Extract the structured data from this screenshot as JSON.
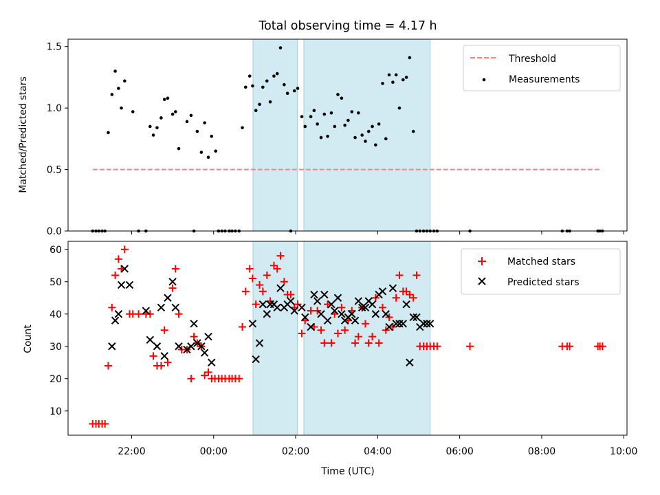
{
  "figure": {
    "title": "Total observing time = 4.17 h"
  },
  "chart_data": [
    {
      "type": "scatter",
      "xlabel": "",
      "ylabel": "Matched/Predicted stars",
      "ylim": [
        0,
        1.56
      ],
      "yticks": [
        "0.0",
        "0.5",
        "1.0",
        "1.5"
      ],
      "ytick_values": [
        0,
        0.5,
        1.0,
        1.5
      ],
      "legend_position": "top-right",
      "shaded_intervals_hours": [
        [
          0.96,
          2.04
        ],
        [
          2.2,
          5.28
        ]
      ],
      "shade_color": "#add8e6",
      "threshold": {
        "name": "Threshold",
        "value": 0.5,
        "x_range_hours": [
          -2.95,
          9.45
        ],
        "color": "#ff7f7f",
        "style": "dashed"
      },
      "series": [
        {
          "name": "Measurements",
          "color": "#000000",
          "marker": "dot",
          "x_hours": [
            -2.95,
            -2.87,
            -2.8,
            -2.72,
            -2.65,
            -2.57,
            -2.48,
            -2.4,
            -2.32,
            -2.25,
            -2.17,
            -1.97,
            -1.83,
            -1.65,
            -1.55,
            -1.47,
            -1.38,
            -1.28,
            -1.2,
            -1.12,
            -1.0,
            -0.93,
            -0.85,
            -0.65,
            -0.55,
            -0.48,
            -0.4,
            -0.3,
            -0.22,
            -0.13,
            -0.05,
            0.05,
            0.12,
            0.2,
            0.28,
            0.38,
            0.45,
            0.53,
            0.62,
            0.7,
            0.78,
            0.88,
            0.95,
            1.03,
            1.12,
            1.2,
            1.3,
            1.38,
            1.47,
            1.55,
            1.63,
            1.72,
            1.8,
            1.88,
            1.97,
            2.05,
            2.15,
            2.23,
            2.37,
            2.45,
            2.53,
            2.62,
            2.7,
            2.78,
            2.87,
            2.95,
            3.03,
            3.12,
            3.2,
            3.28,
            3.37,
            3.45,
            3.53,
            3.62,
            3.7,
            3.78,
            3.87,
            3.95,
            4.03,
            4.12,
            4.2,
            4.28,
            4.37,
            4.45,
            4.53,
            4.62,
            4.7,
            4.78,
            4.87,
            4.95,
            5.03,
            5.12,
            5.2,
            5.28,
            5.37,
            5.45,
            6.25,
            8.5,
            8.62,
            8.68,
            9.37,
            9.42,
            9.48
          ],
          "y": [
            0,
            0,
            0,
            0,
            0,
            0.8,
            1.11,
            1.3,
            1.16,
            1.0,
            1.22,
            0.97,
            0,
            0,
            0.85,
            0.78,
            0.84,
            0.92,
            1.07,
            1.08,
            0.95,
            0.97,
            0.67,
            0.89,
            0.94,
            0,
            0.81,
            0.64,
            0.88,
            0.6,
            0.77,
            0.65,
            0,
            0,
            0,
            0,
            0,
            0,
            0,
            0.84,
            1.17,
            1.26,
            1.18,
            0.98,
            1.03,
            1.17,
            1.22,
            1.05,
            1.26,
            1.28,
            1.49,
            1.19,
            1.12,
            0,
            1.14,
            1.16,
            0.93,
            0.85,
            0.93,
            0.98,
            0.87,
            0.76,
            0.95,
            0.77,
            0.96,
            0.85,
            1.11,
            1.08,
            0.86,
            0.9,
            0.97,
            0.76,
            0.96,
            0.78,
            0.73,
            0.81,
            0.85,
            0.7,
            0.87,
            1.2,
            0.75,
            1.27,
            1.21,
            1.27,
            1.0,
            1.23,
            1.25,
            1.41,
            0.81,
            0,
            0,
            0,
            0,
            0,
            0,
            0,
            0,
            0,
            0,
            0,
            0,
            0,
            0
          ]
        }
      ]
    },
    {
      "type": "scatter",
      "xlabel": "Time (UTC)",
      "ylabel": "Count",
      "ylim": [
        2.5,
        62.5
      ],
      "yticks": [
        "10",
        "20",
        "30",
        "40",
        "50",
        "60"
      ],
      "ytick_values": [
        10,
        20,
        30,
        40,
        50,
        60
      ],
      "xlim_hours": [
        -3.55,
        10.08
      ],
      "xticks": [
        "22:00",
        "00:00",
        "02:00",
        "04:00",
        "06:00",
        "08:00",
        "10:00"
      ],
      "xtick_hours": [
        -2,
        0,
        2,
        4,
        6,
        8,
        10
      ],
      "legend_position": "top-right",
      "series": [
        {
          "name": "Matched stars",
          "color": "#ff0000",
          "marker": "plus",
          "x_hours": [
            -2.95,
            -2.87,
            -2.8,
            -2.72,
            -2.65,
            -2.57,
            -2.48,
            -2.4,
            -2.32,
            -2.25,
            -2.17,
            -2.05,
            -1.97,
            -1.83,
            -1.65,
            -1.55,
            -1.47,
            -1.38,
            -1.28,
            -1.2,
            -1.12,
            -1.0,
            -0.93,
            -0.85,
            -0.78,
            -0.65,
            -0.55,
            -0.48,
            -0.4,
            -0.3,
            -0.22,
            -0.13,
            -0.05,
            0.03,
            0.12,
            0.2,
            0.28,
            0.38,
            0.45,
            0.53,
            0.62,
            0.7,
            0.78,
            0.88,
            0.95,
            1.03,
            1.12,
            1.2,
            1.3,
            1.38,
            1.47,
            1.55,
            1.63,
            1.72,
            1.8,
            1.88,
            1.97,
            2.05,
            2.15,
            2.23,
            2.37,
            2.45,
            2.53,
            2.62,
            2.7,
            2.78,
            2.87,
            2.95,
            3.03,
            3.12,
            3.2,
            3.28,
            3.37,
            3.45,
            3.53,
            3.62,
            3.7,
            3.78,
            3.87,
            3.95,
            4.03,
            4.12,
            4.2,
            4.28,
            4.37,
            4.45,
            4.53,
            4.62,
            4.7,
            4.78,
            4.87,
            4.95,
            5.03,
            5.12,
            5.2,
            5.28,
            5.37,
            5.45,
            6.25,
            8.5,
            8.62,
            8.68,
            9.37,
            9.42,
            9.48
          ],
          "y": [
            6,
            6,
            6,
            6,
            6,
            24,
            42,
            52,
            57,
            54,
            60,
            40,
            40,
            40,
            40,
            40,
            27,
            24,
            24,
            35,
            25,
            48,
            54,
            40,
            29,
            29,
            20,
            33,
            31,
            30,
            21,
            22,
            20,
            20,
            20,
            20,
            20,
            20,
            20,
            20,
            20,
            36,
            47,
            54,
            51,
            43,
            49,
            47,
            52,
            44,
            55,
            54,
            58,
            50,
            46,
            46,
            42,
            43,
            34,
            38,
            41,
            36,
            41,
            35,
            31,
            43,
            31,
            40,
            34,
            42,
            35,
            38,
            41,
            31,
            33,
            42,
            37,
            31,
            33,
            45,
            31,
            42,
            35,
            39,
            36,
            45,
            52,
            47,
            47,
            46,
            45,
            52,
            30,
            30,
            30,
            30,
            30,
            30,
            30,
            30,
            30,
            30,
            30,
            30,
            30
          ],
          "x_extra_note": ""
        },
        {
          "name": "Predicted stars",
          "color": "#000000",
          "marker": "x",
          "x_hours": [
            -2.48,
            -2.4,
            -2.32,
            -2.25,
            -2.17,
            -2.05,
            -1.65,
            -1.55,
            -1.38,
            -1.28,
            -1.2,
            -1.12,
            -1.0,
            -0.93,
            -0.85,
            -0.65,
            -0.55,
            -0.48,
            -0.4,
            -0.3,
            -0.22,
            -0.13,
            -0.05,
            0.95,
            1.03,
            1.12,
            1.2,
            1.3,
            1.38,
            1.47,
            1.55,
            1.63,
            1.72,
            1.8,
            1.88,
            1.97,
            2.15,
            2.23,
            2.37,
            2.45,
            2.53,
            2.62,
            2.7,
            2.78,
            2.87,
            2.95,
            3.03,
            3.12,
            3.2,
            3.28,
            3.37,
            3.45,
            3.53,
            3.62,
            3.7,
            3.78,
            3.87,
            3.95,
            4.03,
            4.12,
            4.2,
            4.28,
            4.37,
            4.45,
            4.53,
            4.62,
            4.7,
            4.78,
            4.87,
            4.95,
            5.03,
            5.12,
            5.2,
            5.28
          ],
          "y": [
            30,
            38,
            40,
            49,
            54,
            49,
            41,
            32,
            30,
            42,
            27,
            45,
            50,
            42,
            30,
            29,
            30,
            37,
            31,
            30,
            28,
            33,
            25,
            37,
            26,
            31,
            43,
            40,
            43,
            43,
            42,
            48,
            42,
            43,
            44,
            41,
            42,
            39,
            36,
            46,
            44,
            40,
            46,
            38,
            43,
            41,
            45,
            40,
            38,
            39,
            40,
            38,
            44,
            42,
            42,
            44,
            43,
            40,
            46,
            47,
            40,
            36,
            48,
            37,
            37,
            37,
            43,
            25,
            39,
            39,
            36,
            37,
            37,
            37
          ]
        }
      ]
    }
  ]
}
